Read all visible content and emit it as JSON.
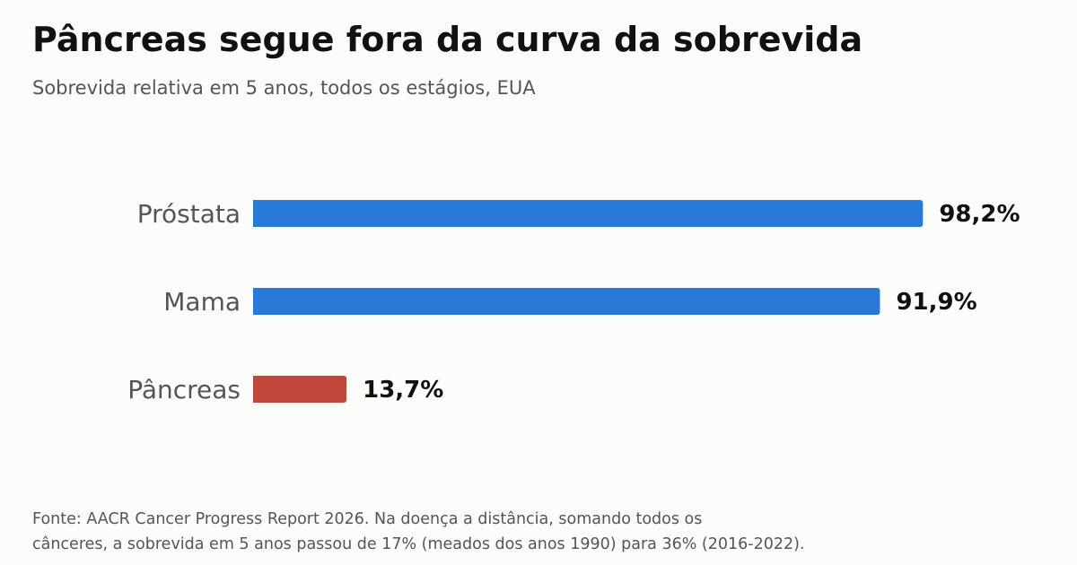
{
  "header": {
    "title": "Pâncreas segue fora da curva da sobrevida",
    "subtitle": "Sobrevida relativa em 5 anos, todos os estágios, EUA"
  },
  "chart_data": {
    "type": "bar",
    "orientation": "horizontal",
    "categories": [
      "Próstata",
      "Mama",
      "Pâncreas"
    ],
    "values": [
      98.2,
      91.9,
      13.7
    ],
    "value_labels": [
      "98,2%",
      "91,9%",
      "13,7%"
    ],
    "colors": [
      "#2878d6",
      "#2878d6",
      "#c1463a"
    ],
    "title": "Pâncreas segue fora da curva da sobrevida",
    "subtitle": "Sobrevida relativa em 5 anos, todos os estágios, EUA",
    "xlim": [
      0,
      100
    ],
    "grid": false,
    "legend": "none"
  },
  "footnote": {
    "line1": "Fonte: AACR Cancer Progress Report 2026. Na doença a distância, somando todos os",
    "line2": "cânceres, a sobrevida em 5 anos passou de 17% (meados dos anos 1990) para 36% (2016-2022)."
  }
}
